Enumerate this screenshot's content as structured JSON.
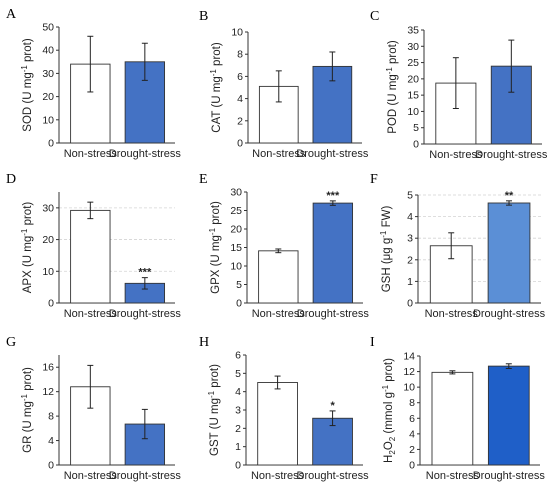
{
  "chart_data": [
    {
      "panel": "A",
      "type": "bar",
      "categories": [
        "Non-stress",
        "Drought-stress"
      ],
      "values": [
        34,
        35
      ],
      "errors": [
        12,
        8
      ],
      "ylabel": {
        "prefix": "SOD (U mg",
        "sup": "-1",
        "suffix": " prot)"
      },
      "ylim": [
        0,
        50
      ],
      "yticks": [
        "0",
        "10",
        "20",
        "30",
        "40",
        "50"
      ],
      "significance": [
        "",
        ""
      ],
      "gridlines": false
    },
    {
      "panel": "B",
      "type": "bar",
      "categories": [
        "Non-stress",
        "Drought-stress"
      ],
      "values": [
        5.1,
        6.9
      ],
      "errors": [
        1.4,
        1.3
      ],
      "ylabel": {
        "prefix": "CAT (U mg",
        "sup": "-1",
        "suffix": " prot)"
      },
      "ylim": [
        0,
        10
      ],
      "yticks": [
        "0",
        "2",
        "4",
        "6",
        "8",
        "10"
      ],
      "significance": [
        "",
        ""
      ],
      "gridlines": false
    },
    {
      "panel": "C",
      "type": "bar",
      "categories": [
        "Non-stress",
        "Drought-stress"
      ],
      "values": [
        18.7,
        23.9
      ],
      "errors": [
        7.8,
        8.0
      ],
      "ylabel": {
        "prefix": "POD (U mg",
        "sup": "-1",
        "suffix": " prot)"
      },
      "ylim": [
        0,
        35
      ],
      "yticks": [
        "0",
        "5",
        "10",
        "15",
        "20",
        "25",
        "30",
        "35"
      ],
      "significance": [
        "",
        ""
      ],
      "gridlines": false
    },
    {
      "panel": "D",
      "type": "bar",
      "categories": [
        "Non-stress",
        "Drought-stress"
      ],
      "values": [
        29.2,
        6.2
      ],
      "errors": [
        2.6,
        1.8
      ],
      "ylabel": {
        "prefix": "APX (U mg",
        "sup": "-1",
        "suffix": " prot)"
      },
      "ylim": [
        0,
        35
      ],
      "yticks": [
        "0",
        "10",
        "20",
        "30"
      ],
      "significance": [
        "",
        "***"
      ],
      "gridlines": true
    },
    {
      "panel": "E",
      "type": "bar",
      "categories": [
        "Non-stress",
        "Drought-stress"
      ],
      "values": [
        14.1,
        27.0
      ],
      "errors": [
        0.5,
        0.6
      ],
      "ylabel": {
        "prefix": "GPX (U mg",
        "sup": "-1",
        "suffix": " prot)"
      },
      "ylim": [
        0,
        30
      ],
      "yticks": [
        "0",
        "5",
        "10",
        "15",
        "20",
        "25",
        "30"
      ],
      "significance": [
        "",
        "***"
      ],
      "gridlines": false
    },
    {
      "panel": "F",
      "type": "bar",
      "categories": [
        "Non-stress",
        "Drought-stress"
      ],
      "values": [
        2.65,
        4.63
      ],
      "errors": [
        0.6,
        0.1
      ],
      "ylabel": {
        "prefix": "GSH (μg g",
        "sup": "-1",
        "suffix": " FW)"
      },
      "ylim": [
        0,
        5
      ],
      "yticks": [
        "0",
        "1",
        "2",
        "3",
        "4",
        "5"
      ],
      "significance": [
        "",
        "**"
      ],
      "gridlines": true
    },
    {
      "panel": "G",
      "type": "bar",
      "categories": [
        "Non-stress",
        "Drought-stress"
      ],
      "values": [
        12.8,
        6.7
      ],
      "errors": [
        3.5,
        2.4
      ],
      "ylabel": {
        "prefix": "GR (U mg",
        "sup": "-1",
        "suffix": " prot)"
      },
      "ylim": [
        0,
        18
      ],
      "yticks": [
        "0",
        "4",
        "8",
        "12",
        "16"
      ],
      "significance": [
        "",
        ""
      ],
      "gridlines": false
    },
    {
      "panel": "H",
      "type": "bar",
      "categories": [
        "Non-stress",
        "Drought-stress"
      ],
      "values": [
        4.5,
        2.55
      ],
      "errors": [
        0.35,
        0.4
      ],
      "ylabel": {
        "prefix": "GST (U mg",
        "sup": "-1",
        "suffix": " prot)"
      },
      "ylim": [
        0,
        6
      ],
      "yticks": [
        "0",
        "1",
        "2",
        "3",
        "4",
        "5",
        "6"
      ],
      "significance": [
        "",
        "*"
      ],
      "gridlines": false
    },
    {
      "panel": "I",
      "type": "bar",
      "categories": [
        "Non-stress",
        "Drought-stress"
      ],
      "values": [
        11.9,
        12.7
      ],
      "errors": [
        0.2,
        0.3
      ],
      "ylabel": {
        "prefix": "H",
        "sub": "2",
        "mid": "O",
        "sub2": "2",
        "prefix2": " (mmol g",
        "sup": "-1",
        "suffix": " prot)"
      },
      "ylim": [
        0,
        14
      ],
      "yticks": [
        "0",
        "2",
        "4",
        "6",
        "8",
        "10",
        "12",
        "14"
      ],
      "significance": [
        "",
        ""
      ],
      "gridlines": false
    }
  ],
  "colors": {
    "non_stress": "#ffffff",
    "drought": "#4472c4",
    "drought_f": "#5b8fd6",
    "drought_i": "#1f5fc8",
    "axis": "#333333",
    "grid": "#d4d4d4"
  }
}
